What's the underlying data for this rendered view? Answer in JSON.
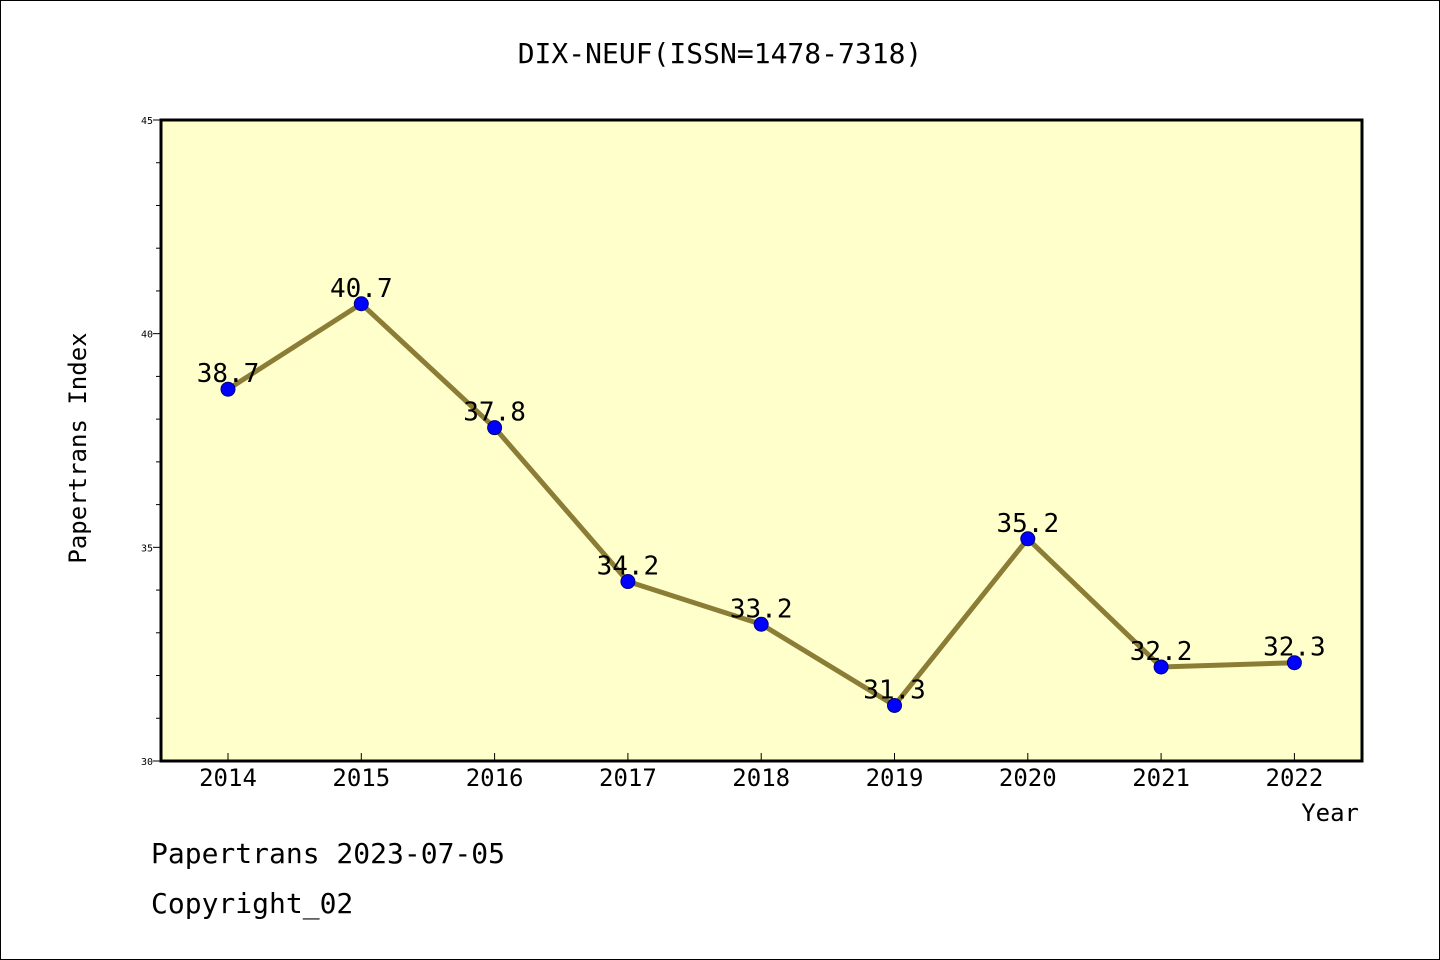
{
  "chart_data": {
    "type": "line",
    "title": "DIX-NEUF(ISSN=1478-7318)",
    "xlabel": "Year",
    "ylabel": "Papertrans Index",
    "categories": [
      "2014",
      "2015",
      "2016",
      "2017",
      "2018",
      "2019",
      "2020",
      "2021",
      "2022"
    ],
    "series": [
      {
        "values": [
          38.7,
          40.7,
          37.8,
          34.2,
          33.2,
          31.3,
          35.2,
          32.2,
          32.3
        ],
        "labels": [
          "38.7",
          "40.7",
          "37.8",
          "34.2",
          "33.2",
          "31.3",
          "35.2",
          "32.2",
          "32.3"
        ]
      }
    ],
    "ylim": [
      30,
      45
    ],
    "yticks": [
      "30",
      "35",
      "40",
      "45"
    ],
    "grid": false,
    "colors": {
      "plot_background": "#ffffcc",
      "line": "#8b7d35",
      "marker": "#0000ff"
    }
  },
  "footer": {
    "line1": "Papertrans 2023-07-05",
    "line2": "Copyright_02"
  }
}
